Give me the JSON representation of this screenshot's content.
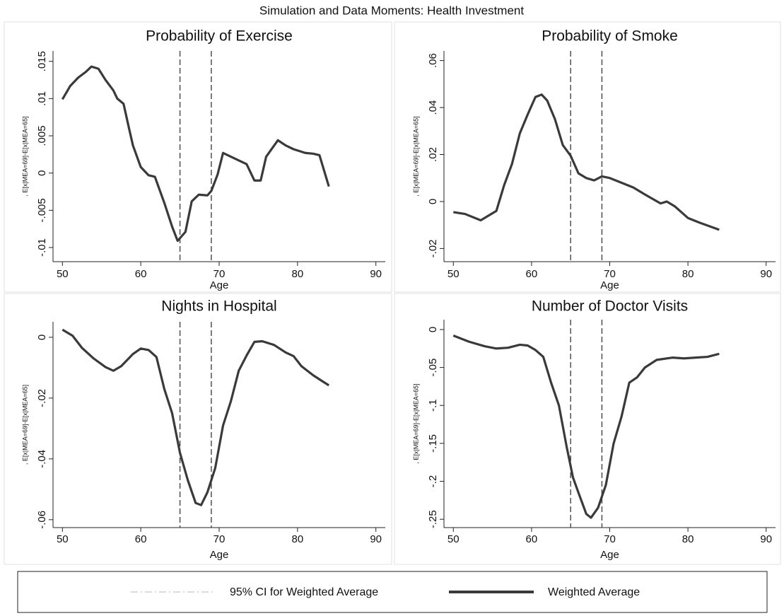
{
  "title": "Simulation and Data Moments: Health Investment",
  "legend": [
    {
      "name": "95% CI for Weighted Average",
      "color": "#c8c8c8"
    },
    {
      "name": "Weighted Average",
      "color": "#3a3a3a"
    }
  ],
  "chart_data": [
    {
      "type": "line",
      "title": "Probability of Exercise",
      "xlabel": "Age",
      "ylabel": ", E[x|MEA=69]-E[x|MEA=65]",
      "x": [
        50,
        51,
        52,
        53,
        53.7,
        54.6,
        55.5,
        56.5,
        57,
        57.8,
        58.5,
        59,
        60,
        61,
        61.8,
        63,
        64,
        64.7,
        65.7,
        66.5,
        67.4,
        68.5,
        69,
        69.8,
        70.5,
        71.5,
        72.5,
        73.5,
        74.5,
        75.3,
        76,
        77.5,
        78.5,
        79.5,
        81,
        82,
        82.8,
        84
      ],
      "series": [
        {
          "color": "#3a3a3a",
          "values": [
            0.0099,
            0.0117,
            0.0128,
            0.0136,
            0.0143,
            0.014,
            0.0125,
            0.0111,
            0.01,
            0.0093,
            0.006,
            0.0037,
            0.0008,
            -0.0003,
            -0.0005,
            -0.004,
            -0.0072,
            -0.0091,
            -0.0079,
            -0.0038,
            -0.0029,
            -0.003,
            -0.0024,
            -0.0002,
            0.0027,
            0.0022,
            0.0017,
            0.0012,
            -0.001,
            -0.001,
            0.0022,
            0.0044,
            0.0037,
            0.0032,
            0.0027,
            0.0026,
            0.0024,
            -0.0018
          ]
        }
      ],
      "xlim": [
        48.8,
        91.2
      ],
      "xticks": [
        50,
        60,
        70,
        80,
        90
      ],
      "ylim": [
        -0.0119,
        0.0164
      ],
      "yticks": [
        {
          "value": -0.01,
          "label": "-.01"
        },
        {
          "value": -0.005,
          "label": "-.005"
        },
        0,
        {
          "value": 0.005,
          "label": ".005"
        },
        {
          "value": 0.01,
          "label": ".01"
        },
        {
          "value": 0.015,
          "label": ".015"
        }
      ],
      "vlines": [
        65,
        69
      ]
    },
    {
      "type": "line",
      "title": "Probability of Smoke",
      "xlabel": "Age",
      "ylabel": ", E[x|MEA=69]-E[x|MEA=65]",
      "x": [
        50,
        51.5,
        53.5,
        55.5,
        56.5,
        57.5,
        58.5,
        59.5,
        60.5,
        61.3,
        62,
        63,
        64,
        65,
        66,
        67,
        68,
        69,
        70,
        71.5,
        73,
        74.5,
        76.5,
        77.3,
        78.3,
        80,
        81.5,
        83,
        84
      ],
      "series": [
        {
          "color": "#3a3a3a",
          "values": [
            -0.0045,
            -0.0053,
            -0.008,
            -0.004,
            0.007,
            0.016,
            0.029,
            0.037,
            0.0445,
            0.0455,
            0.043,
            0.035,
            0.024,
            0.0195,
            0.012,
            0.01,
            0.009,
            0.0107,
            0.01,
            0.008,
            0.006,
            0.003,
            -0.0008,
            0,
            -0.002,
            -0.007,
            -0.009,
            -0.0108,
            -0.012
          ]
        }
      ],
      "xlim": [
        48.8,
        91.2
      ],
      "xticks": [
        50,
        60,
        70,
        80,
        90
      ],
      "ylim": [
        -0.0256,
        0.0641
      ],
      "yticks": [
        {
          "value": -0.02,
          "label": "-.02"
        },
        0,
        {
          "value": 0.02,
          "label": ".02"
        },
        {
          "value": 0.04,
          "label": ".04"
        },
        {
          "value": 0.06,
          "label": ".06"
        }
      ],
      "vlines": [
        65,
        69
      ]
    },
    {
      "type": "line",
      "title": "Nights in Hospital",
      "xlabel": "Age",
      "ylabel": ", E[x|MEA=69]-E[x|MEA=65]",
      "x": [
        50,
        51.3,
        52.5,
        54,
        55.5,
        56.5,
        57.5,
        59,
        60,
        61,
        62,
        63,
        64,
        65,
        66,
        67,
        67.7,
        68.5,
        69.5,
        70.5,
        71.5,
        72.5,
        73.5,
        74.5,
        75.5,
        77,
        78.5,
        79.5,
        80.5,
        82,
        83.2,
        84
      ],
      "series": [
        {
          "color": "#3a3a3a",
          "values": [
            0.0025,
            0.0005,
            -0.0035,
            -0.007,
            -0.0098,
            -0.011,
            -0.0095,
            -0.0055,
            -0.0037,
            -0.0042,
            -0.0065,
            -0.017,
            -0.025,
            -0.038,
            -0.047,
            -0.0545,
            -0.0552,
            -0.051,
            -0.043,
            -0.029,
            -0.021,
            -0.011,
            -0.006,
            -0.0015,
            -0.0013,
            -0.0025,
            -0.005,
            -0.0062,
            -0.0095,
            -0.0125,
            -0.0145,
            -0.0158
          ]
        }
      ],
      "xlim": [
        48.8,
        91.2
      ],
      "xticks": [
        50,
        60,
        70,
        80,
        90
      ],
      "ylim": [
        -0.0626,
        0.0051
      ],
      "yticks": [
        {
          "value": -0.06,
          "label": "-.06"
        },
        {
          "value": -0.04,
          "label": "-.04"
        },
        {
          "value": -0.02,
          "label": "-.02"
        },
        0
      ],
      "vlines": [
        65,
        69
      ]
    },
    {
      "type": "line",
      "title": "Number of Doctor Visits",
      "xlabel": "Age",
      "ylabel": ", E[x|MEA=69]-E[x|MEA=65]",
      "x": [
        50,
        52,
        54,
        55.5,
        57,
        58.5,
        59.5,
        60.5,
        61.5,
        62.5,
        63.5,
        64.5,
        65.3,
        66,
        67,
        67.6,
        68.5,
        69.5,
        70.5,
        71.5,
        72.5,
        73.5,
        74.5,
        76,
        78,
        79.5,
        81,
        82.5,
        84
      ],
      "series": [
        {
          "color": "#3a3a3a",
          "values": [
            -0.008,
            -0.016,
            -0.022,
            -0.025,
            -0.024,
            -0.02,
            -0.021,
            -0.027,
            -0.036,
            -0.07,
            -0.1,
            -0.155,
            -0.195,
            -0.215,
            -0.243,
            -0.248,
            -0.235,
            -0.205,
            -0.15,
            -0.115,
            -0.07,
            -0.063,
            -0.05,
            -0.04,
            -0.037,
            -0.038,
            -0.037,
            -0.036,
            -0.032
          ]
        }
      ],
      "xlim": [
        48.8,
        91.2
      ],
      "xticks": [
        50,
        60,
        70,
        80,
        90
      ],
      "ylim": [
        -0.261,
        0.013
      ],
      "yticks": [
        {
          "value": -0.25,
          "label": "-.25"
        },
        {
          "value": -0.2,
          "label": "-.2"
        },
        {
          "value": -0.15,
          "label": "-.15"
        },
        {
          "value": -0.1,
          "label": "-.1"
        },
        {
          "value": -0.05,
          "label": "-.05"
        },
        0
      ],
      "vlines": [
        65,
        69
      ]
    }
  ]
}
